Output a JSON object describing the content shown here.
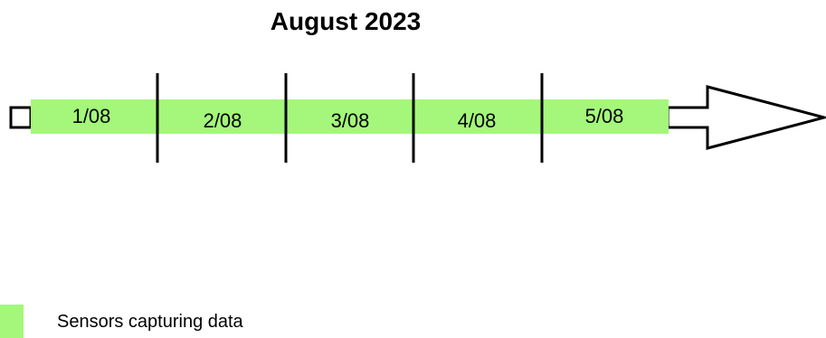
{
  "title": "August 2023",
  "colors": {
    "active_fill": "#a4f77a",
    "line": "#000000",
    "arrow_fill": "#ffffff"
  },
  "timeline": {
    "days": [
      {
        "label": "1/08"
      },
      {
        "label": "2/08"
      },
      {
        "label": "3/08"
      },
      {
        "label": "4/08"
      },
      {
        "label": "5/08"
      }
    ]
  },
  "legend": {
    "items": [
      {
        "label": "Sensors capturing data",
        "color": "#a4f77a"
      }
    ]
  }
}
